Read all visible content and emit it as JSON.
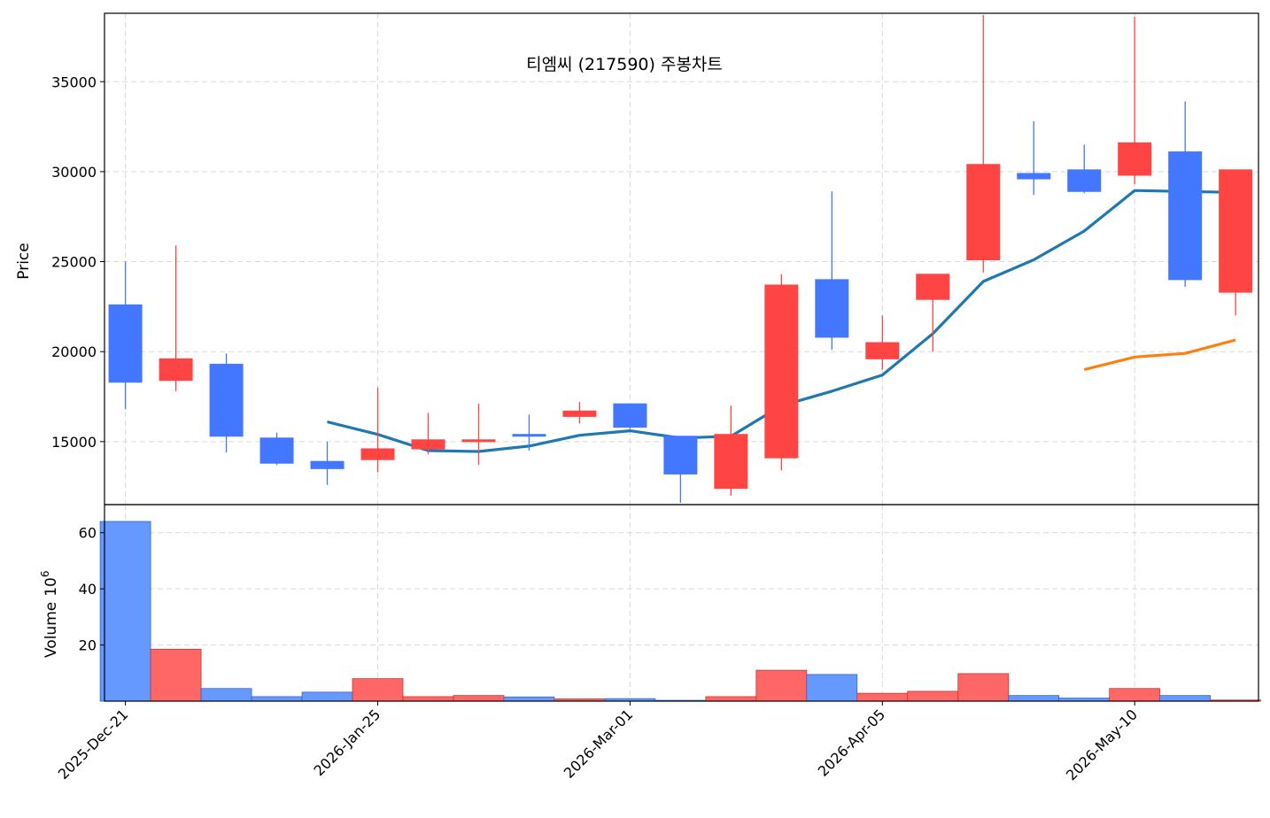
{
  "chart_data": {
    "type": "candlestick",
    "title": "티엠씨 (217590) 주봉차트",
    "ylabel": "Price",
    "volume_ylabel": "Volume",
    "volume_unit_exp": "6",
    "ylim": [
      11500,
      38800
    ],
    "volume_ylim": [
      0,
      70
    ],
    "y_ticks": [
      15000,
      20000,
      25000,
      30000,
      35000
    ],
    "volume_ticks": [
      20,
      40,
      60
    ],
    "x_tick_labels": [
      "2025-Dec-21",
      "2026-Jan-25",
      "2026-Mar-01",
      "2026-Apr-05",
      "2026-May-10"
    ],
    "x_tick_index": [
      0,
      5,
      10,
      15,
      20
    ],
    "grid": true,
    "colors": {
      "up": "#ff4444",
      "down": "#4477ff",
      "vol_up": "#ff6666",
      "vol_down": "#6699ff",
      "ma1": "#1f77b4",
      "ma2": "#ff7f0e"
    },
    "candles": [
      {
        "open": 22600,
        "high": 25000,
        "low": 16800,
        "close": 18300,
        "volume": 64
      },
      {
        "open": 18400,
        "high": 25900,
        "low": 17800,
        "close": 19600,
        "volume": 18.5
      },
      {
        "open": 19300,
        "high": 19900,
        "low": 14400,
        "close": 15300,
        "volume": 4.5
      },
      {
        "open": 15200,
        "high": 15500,
        "low": 13700,
        "close": 13800,
        "volume": 1.6
      },
      {
        "open": 13900,
        "high": 15000,
        "low": 12600,
        "close": 13500,
        "volume": 3.2
      },
      {
        "open": 14000,
        "high": 18000,
        "low": 13300,
        "close": 14600,
        "volume": 8
      },
      {
        "open": 14600,
        "high": 16600,
        "low": 14300,
        "close": 15100,
        "volume": 1.6
      },
      {
        "open": 15000,
        "high": 17100,
        "low": 13700,
        "close": 15100,
        "volume": 2
      },
      {
        "open": 15400,
        "high": 16500,
        "low": 14500,
        "close": 15300,
        "volume": 1.5
      },
      {
        "open": 16400,
        "high": 17200,
        "low": 16000,
        "close": 16700,
        "volume": 0.8
      },
      {
        "open": 17100,
        "high": 17100,
        "low": 15700,
        "close": 15800,
        "volume": 0.9
      },
      {
        "open": 15300,
        "high": 15300,
        "low": 11600,
        "close": 13200,
        "volume": 0.3
      },
      {
        "open": 12400,
        "high": 17000,
        "low": 12000,
        "close": 15400,
        "volume": 1.6
      },
      {
        "open": 14100,
        "high": 24300,
        "low": 13400,
        "close": 23700,
        "volume": 11
      },
      {
        "open": 24000,
        "high": 28900,
        "low": 20100,
        "close": 20800,
        "volume": 9.5
      },
      {
        "open": 19600,
        "high": 22000,
        "low": 19000,
        "close": 20500,
        "volume": 2.8
      },
      {
        "open": 22900,
        "high": 24300,
        "low": 20000,
        "close": 24300,
        "volume": 3.5
      },
      {
        "open": 25100,
        "high": 38700,
        "low": 24400,
        "close": 30400,
        "volume": 9.8
      },
      {
        "open": 29900,
        "high": 32800,
        "low": 28700,
        "close": 29600,
        "volume": 2
      },
      {
        "open": 30100,
        "high": 31500,
        "low": 28800,
        "close": 28900,
        "volume": 1.1
      },
      {
        "open": 29800,
        "high": 38600,
        "low": 29300,
        "close": 31600,
        "volume": 4.5
      },
      {
        "open": 31100,
        "high": 33900,
        "low": 23600,
        "close": 24000,
        "volume": 2
      },
      {
        "open": 23300,
        "high": 30100,
        "low": 22000,
        "close": 30100,
        "volume": 0.4
      }
    ],
    "ma1": [
      null,
      null,
      null,
      null,
      16100,
      15400,
      14500,
      14450,
      14750,
      15350,
      15600,
      15200,
      15300,
      17000,
      17800,
      18700,
      21000,
      23900,
      25100,
      26700,
      28950,
      28900,
      28850
    ],
    "ma2": [
      null,
      null,
      null,
      null,
      null,
      null,
      null,
      null,
      null,
      null,
      null,
      null,
      null,
      null,
      null,
      null,
      null,
      null,
      null,
      19000,
      19700,
      19900,
      20650
    ]
  }
}
